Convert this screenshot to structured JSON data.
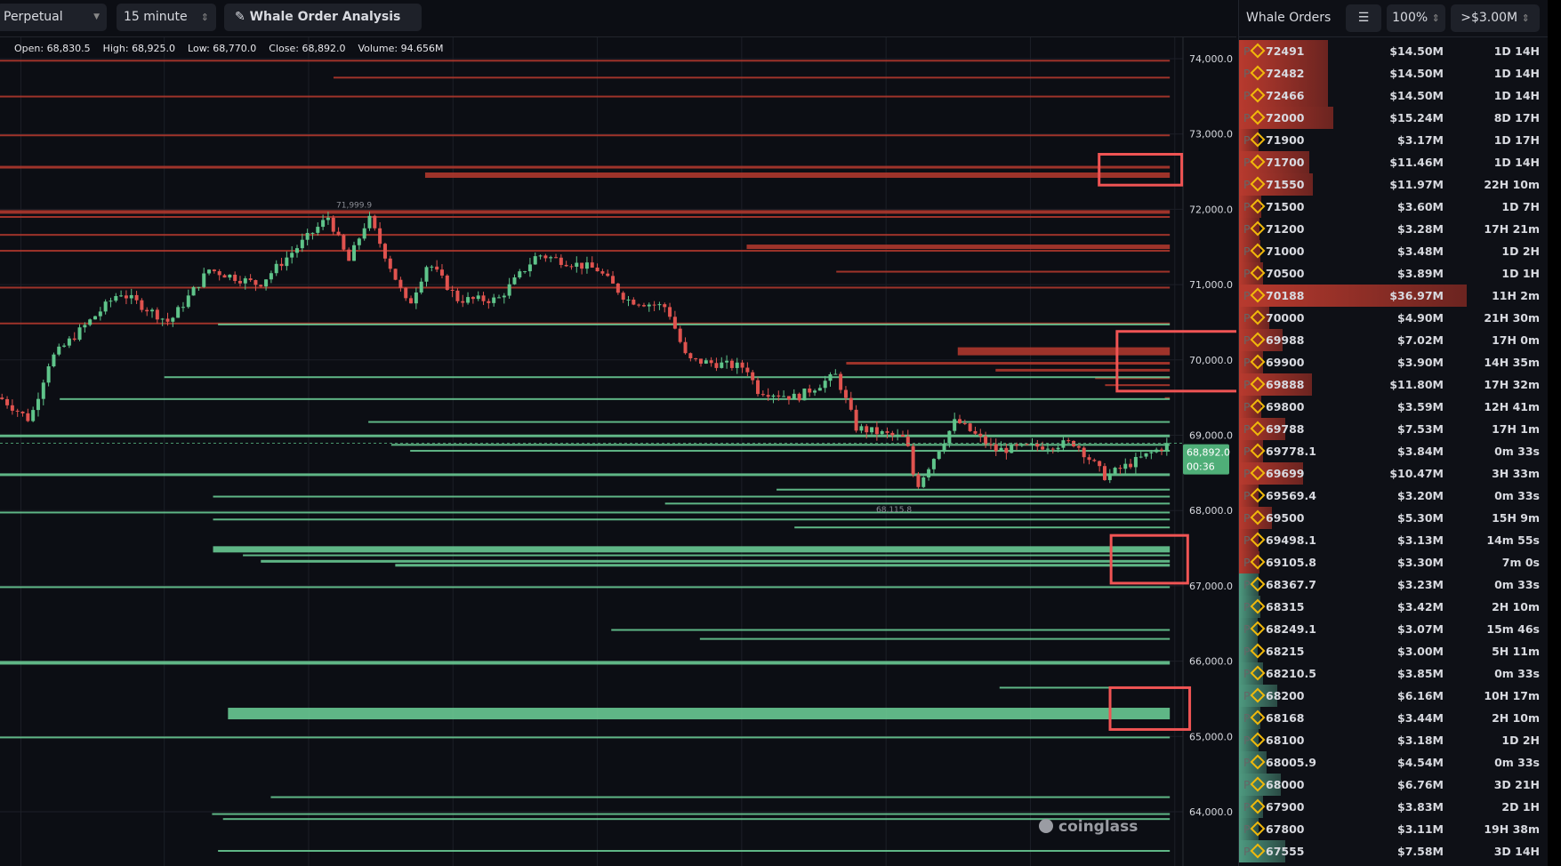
{
  "toolbar": {
    "market": "Perpetual",
    "interval": "15 minute",
    "analysis": "Whale Order Analysis"
  },
  "ohlc": {
    "open": "Open: 68,830.5",
    "high": "High: 68,925.0",
    "low": "Low: 68,770.0",
    "close": "Close: 68,892.0",
    "volume": "Volume: 94.656M"
  },
  "chart": {
    "y_ticks": [
      "74,000.0",
      "73,000.0",
      "72,000.0",
      "71,000.0",
      "70,000.0",
      "69,000.0",
      "68,000.0",
      "67,000.0",
      "66,000.0",
      "65,000.0",
      "64,000.0"
    ],
    "current_price": "68,892.0",
    "countdown": "00:36",
    "high_label": "71,999.9",
    "low_label": "68,115.8",
    "watermark": "coinglass",
    "colors": {
      "up": "#5fc48a",
      "down": "#e0534f",
      "ask": "#b83a2e",
      "bid": "#6fd39a",
      "highlight": "#f05454"
    }
  },
  "panel": {
    "title": "Whale Orders",
    "settings_icon": "sliders-icon",
    "ratio": "100%",
    "threshold": ">$3.00M",
    "exchange_prefix": "P",
    "rows": [
      {
        "price": "72491",
        "value": "$14.50M",
        "age": "1D 14H",
        "side": "ask",
        "m": 14.5
      },
      {
        "price": "72482",
        "value": "$14.50M",
        "age": "1D 14H",
        "side": "ask",
        "m": 14.5
      },
      {
        "price": "72466",
        "value": "$14.50M",
        "age": "1D 14H",
        "side": "ask",
        "m": 14.5
      },
      {
        "price": "72000",
        "value": "$15.24M",
        "age": "8D 17H",
        "side": "ask",
        "m": 15.24
      },
      {
        "price": "71900",
        "value": "$3.17M",
        "age": "1D 17H",
        "side": "ask",
        "m": 3.17
      },
      {
        "price": "71700",
        "value": "$11.46M",
        "age": "1D 14H",
        "side": "ask",
        "m": 11.46
      },
      {
        "price": "71550",
        "value": "$11.97M",
        "age": "22H 10m",
        "side": "ask",
        "m": 11.97
      },
      {
        "price": "71500",
        "value": "$3.60M",
        "age": "1D 7H",
        "side": "ask",
        "m": 3.6
      },
      {
        "price": "71200",
        "value": "$3.28M",
        "age": "17H 21m",
        "side": "ask",
        "m": 3.28
      },
      {
        "price": "71000",
        "value": "$3.48M",
        "age": "1D 2H",
        "side": "ask",
        "m": 3.48
      },
      {
        "price": "70500",
        "value": "$3.89M",
        "age": "1D 1H",
        "side": "ask",
        "m": 3.89
      },
      {
        "price": "70188",
        "value": "$36.97M",
        "age": "11H 2m",
        "side": "ask",
        "m": 36.97
      },
      {
        "price": "70000",
        "value": "$4.90M",
        "age": "21H 30m",
        "side": "ask",
        "m": 4.9
      },
      {
        "price": "69988",
        "value": "$7.02M",
        "age": "17H 0m",
        "side": "ask",
        "m": 7.02
      },
      {
        "price": "69900",
        "value": "$3.90M",
        "age": "14H 35m",
        "side": "ask",
        "m": 3.9
      },
      {
        "price": "69888",
        "value": "$11.80M",
        "age": "17H 32m",
        "side": "ask",
        "m": 11.8
      },
      {
        "price": "69800",
        "value": "$3.59M",
        "age": "12H 41m",
        "side": "ask",
        "m": 3.59
      },
      {
        "price": "69788",
        "value": "$7.53M",
        "age": "17H 1m",
        "side": "ask",
        "m": 7.53
      },
      {
        "price": "69778.1",
        "value": "$3.84M",
        "age": "0m 33s",
        "side": "ask",
        "m": 3.84
      },
      {
        "price": "69699",
        "value": "$10.47M",
        "age": "3H 33m",
        "side": "ask",
        "m": 10.47
      },
      {
        "price": "69569.4",
        "value": "$3.20M",
        "age": "0m 33s",
        "side": "ask",
        "m": 3.2
      },
      {
        "price": "69500",
        "value": "$5.30M",
        "age": "15H 9m",
        "side": "ask",
        "m": 5.3
      },
      {
        "price": "69498.1",
        "value": "$3.13M",
        "age": "14m 55s",
        "side": "ask",
        "m": 3.13
      },
      {
        "price": "69105.8",
        "value": "$3.30M",
        "age": "7m 0s",
        "side": "ask",
        "m": 3.3
      },
      {
        "price": "68367.7",
        "value": "$3.23M",
        "age": "0m 33s",
        "side": "bid",
        "m": 3.23
      },
      {
        "price": "68315",
        "value": "$3.42M",
        "age": "2H 10m",
        "side": "bid",
        "m": 3.42
      },
      {
        "price": "68249.1",
        "value": "$3.07M",
        "age": "15m 46s",
        "side": "bid",
        "m": 3.07
      },
      {
        "price": "68215",
        "value": "$3.00M",
        "age": "5H 11m",
        "side": "bid",
        "m": 3.0
      },
      {
        "price": "68210.5",
        "value": "$3.85M",
        "age": "0m 33s",
        "side": "bid",
        "m": 3.85
      },
      {
        "price": "68200",
        "value": "$6.16M",
        "age": "10H 17m",
        "side": "bid",
        "m": 6.16
      },
      {
        "price": "68168",
        "value": "$3.44M",
        "age": "2H 10m",
        "side": "bid",
        "m": 3.44
      },
      {
        "price": "68100",
        "value": "$3.18M",
        "age": "1D 2H",
        "side": "bid",
        "m": 3.18
      },
      {
        "price": "68005.9",
        "value": "$4.54M",
        "age": "0m 33s",
        "side": "bid",
        "m": 4.54
      },
      {
        "price": "68000",
        "value": "$6.76M",
        "age": "3D 21H",
        "side": "bid",
        "m": 6.76
      },
      {
        "price": "67900",
        "value": "$3.83M",
        "age": "2D 1H",
        "side": "bid",
        "m": 3.83
      },
      {
        "price": "67800",
        "value": "$3.11M",
        "age": "19H 38m",
        "side": "bid",
        "m": 3.11
      },
      {
        "price": "67555",
        "value": "$7.58M",
        "age": "3D 14H",
        "side": "bid",
        "m": 7.58
      }
    ]
  }
}
